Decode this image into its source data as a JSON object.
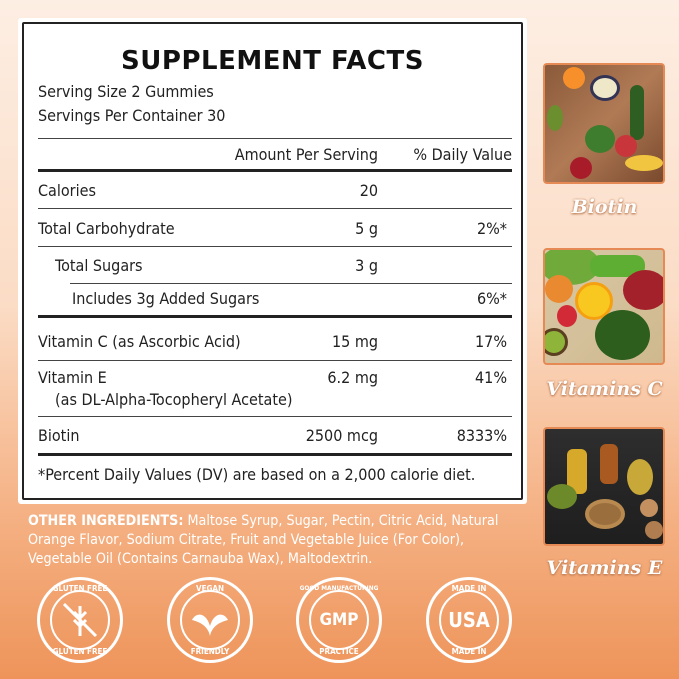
{
  "facts": {
    "title": "SUPPLEMENT FACTS",
    "serving_size": "Serving Size 2 Gummies",
    "servings_per_container": "Servings Per Container 30",
    "col_amount": "Amount Per Serving",
    "col_dv": "% Daily Value",
    "rows": [
      {
        "name": "Calories",
        "amount": "20",
        "dv": ""
      },
      {
        "name": "Total Carbohydrate",
        "amount": "5 g",
        "dv": "2%*"
      },
      {
        "name": "Total Sugars",
        "amount": "3 g",
        "dv": ""
      },
      {
        "name": "Includes 3g Added Sugars",
        "amount": "",
        "dv": "6%*"
      },
      {
        "name": "Vitamin C (as Ascorbic Acid)",
        "amount": "15 mg",
        "dv": "17%"
      },
      {
        "name": "Vitamin E",
        "sub": "(as DL-Alpha-Tocopheryl Acetate)",
        "amount": "6.2 mg",
        "dv": "41%"
      },
      {
        "name": "Biotin",
        "amount": "2500 mcg",
        "dv": "8333%"
      }
    ],
    "footnote": "*Percent Daily Values (DV) are based on a 2,000 calorie diet."
  },
  "ingredients": {
    "label": "OTHER INGREDIENTS:",
    "text": " Maltose Syrup, Sugar, Pectin, Citric Acid, Natural Orange Flavor, Sodium Citrate, Fruit and Vegetable Juice (For Color), Vegetable Oil (Contains Carnauba Wax), Maltodextrin."
  },
  "sidebar": [
    {
      "caption": "Biotin"
    },
    {
      "caption": "Vitamins C"
    },
    {
      "caption": "Vitamins E"
    }
  ],
  "badges": [
    {
      "top": "GLUTEN FREE",
      "center": "",
      "bottom": "GLUTEN FREE",
      "icon": "wheat-crossed-icon"
    },
    {
      "top": "VEGAN",
      "center": "",
      "bottom": "FRIENDLY",
      "icon": "leaf-sprout-icon"
    },
    {
      "top": "GOOD MANUFACTURING",
      "center": "GMP",
      "bottom": "PRACTICE",
      "icon": ""
    },
    {
      "top": "MADE IN",
      "center": "USA",
      "bottom": "MADE IN",
      "icon": ""
    }
  ],
  "colors": {
    "background_top": "#fdeee3",
    "background_bottom": "#ee945a",
    "photo_border": "#e58a55"
  }
}
